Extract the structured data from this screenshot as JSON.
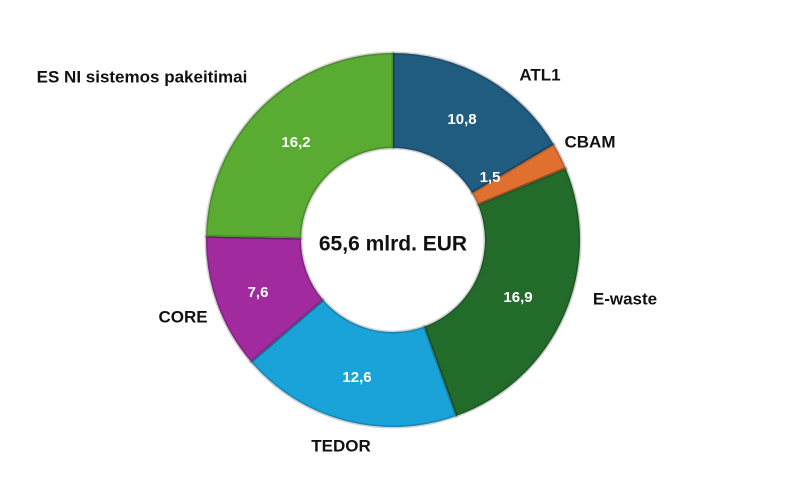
{
  "chart_data": {
    "type": "donut",
    "center_label": "65,6 mlrd.  EUR",
    "categories": [
      "ATL1",
      "CBAM",
      "E-waste",
      "TEDOR",
      "CORE",
      "ES NI sistemos pakeitimai"
    ],
    "values": [
      10.8,
      1.5,
      16.9,
      12.6,
      7.6,
      16.2
    ],
    "value_labels": [
      "10,8",
      "1,5",
      "16,9",
      "12,6",
      "7,6",
      "16,2"
    ],
    "colors": [
      "#1f5c80",
      "#e07030",
      "#236b2a",
      "#1aa3d9",
      "#a02a9e",
      "#5aab32"
    ]
  }
}
